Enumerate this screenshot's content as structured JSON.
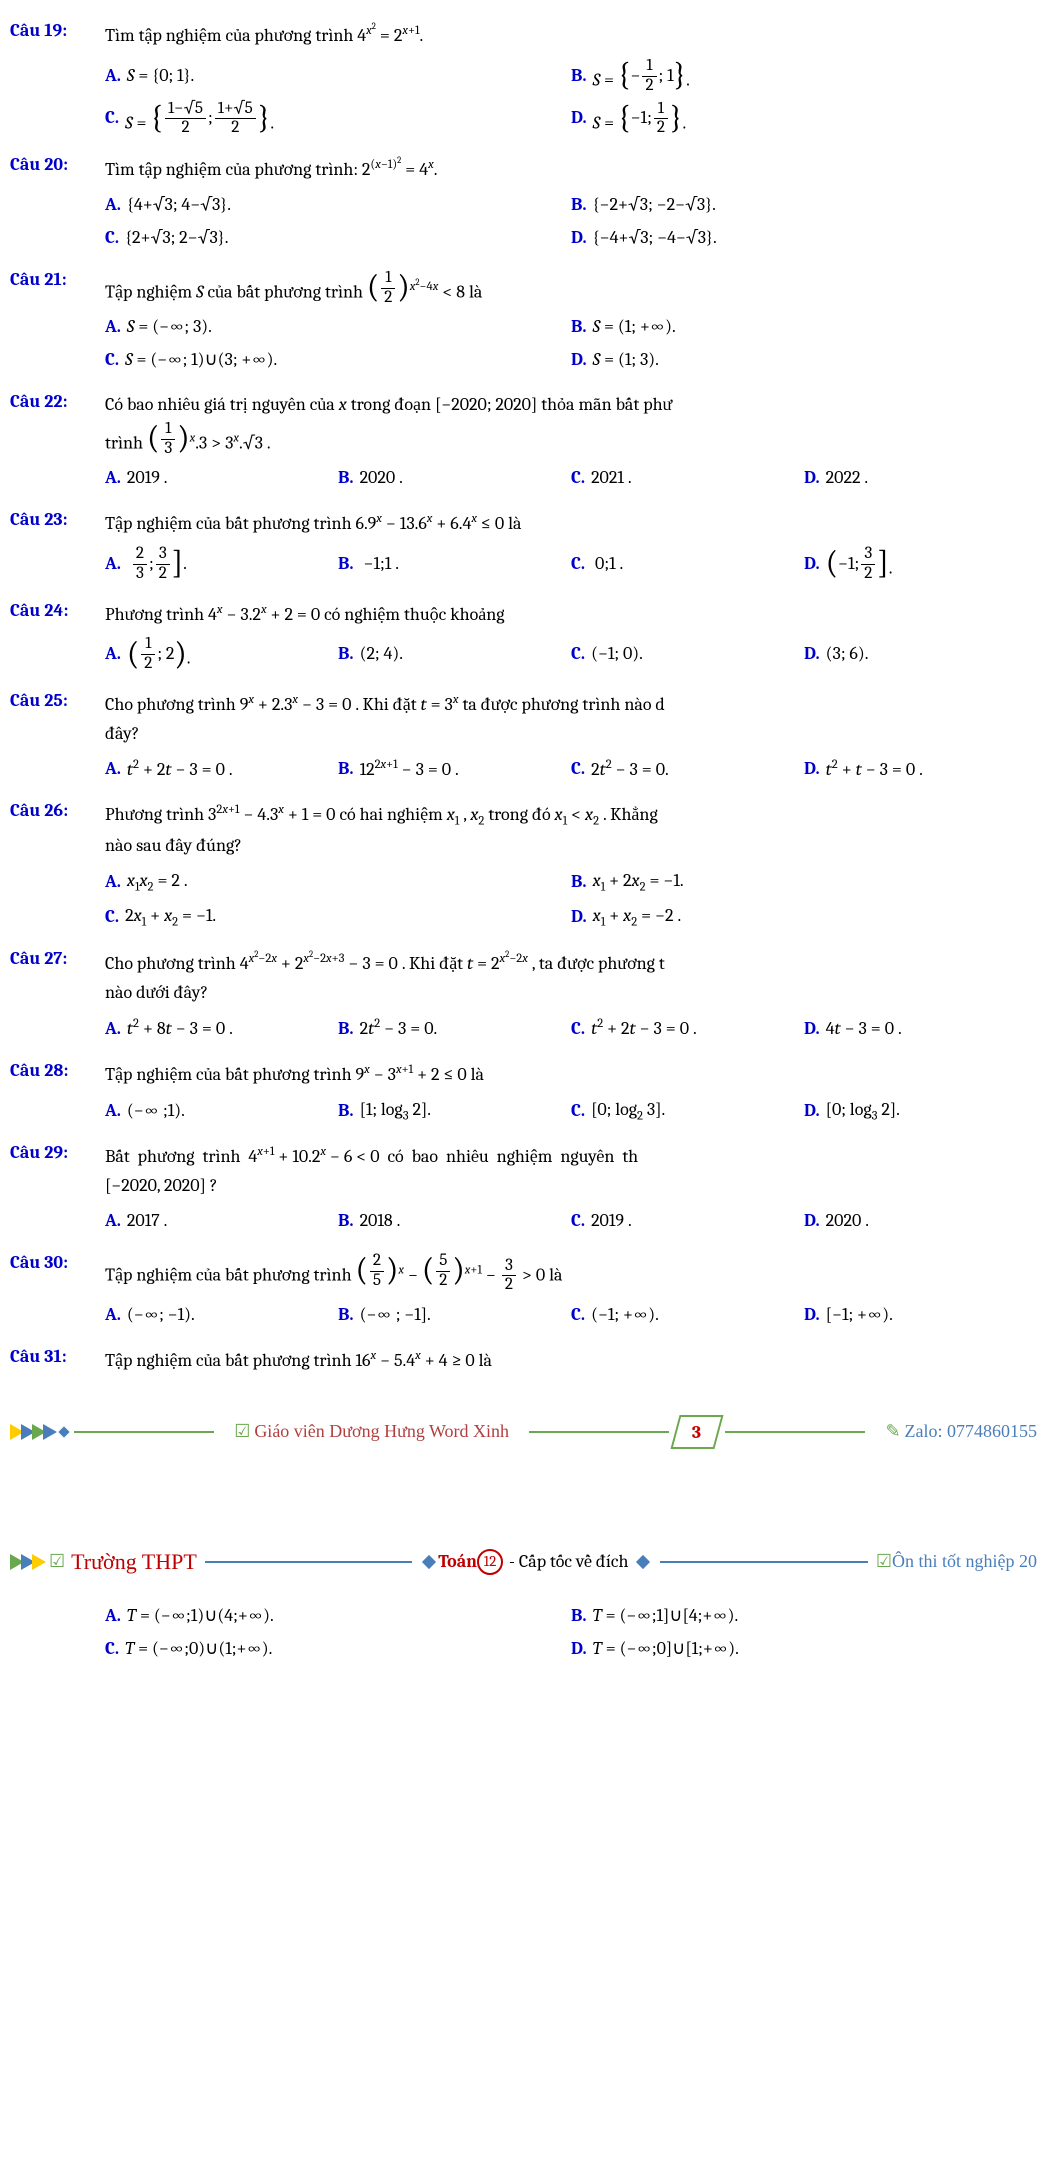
{
  "questions": [
    {
      "num": "Câu 19:",
      "stem_html": "Tìm tập nghiệm của phương trình 4<sup><i>x</i><sup>2</sup></sup> = 2<sup><i>x</i>+1</sup>.",
      "opts": [
        {
          "w": "w50",
          "html": "<i>S</i> = {0; 1}."
        },
        {
          "w": "w50",
          "html": "<i>S</i> = <span class='brace-group'><span class='lbrace'>{</span>−<span class='frac'><span class='num'>1</span><span class='den'>2</span></span>; 1<span class='rbrace'>}</span></span>."
        },
        {
          "w": "w50",
          "html": "<i>S</i> = <span class='brace-group'><span class='lbrace'>{</span><span class='frac'><span class='num'>1−√5</span><span class='den'>2</span></span>; <span class='frac'><span class='num'>1+√5</span><span class='den'>2</span></span><span class='rbrace'>}</span></span>."
        },
        {
          "w": "w50",
          "html": "<i>S</i> = <span class='brace-group'><span class='lbrace'>{</span>−1; <span class='frac'><span class='num'>1</span><span class='den'>2</span></span><span class='rbrace'>}</span></span>."
        }
      ]
    },
    {
      "num": "Câu 20:",
      "stem_html": "Tìm tập nghiệm của phương trình: 2<sup>(<i>x</i>−1)<sup>2</sup></sup> = 4<sup><i>x</i></sup>.",
      "opts": [
        {
          "w": "w50",
          "html": "{4+√3; 4−√3}."
        },
        {
          "w": "w50",
          "html": "{−2+√3; −2−√3}."
        },
        {
          "w": "w50",
          "html": "{2+√3; 2−√3}."
        },
        {
          "w": "w50",
          "html": "{−4+√3; −4−√3}."
        }
      ]
    },
    {
      "num": "Câu 21:",
      "stem_html": "Tập nghiệm <i>S</i> của bất phương trình <span class='brace-group'><span class='lparen'>(</span><span class='frac'><span class='num'>1</span><span class='den'>2</span></span><span class='rparen'>)</span></span><sup><i>x</i><sup>2</sup>−4<i>x</i></sup> &lt; 8 là",
      "opts": [
        {
          "w": "w50",
          "html": "<i>S</i> = (−∞; 3)."
        },
        {
          "w": "w50",
          "html": "<i>S</i> = (1; +∞)."
        },
        {
          "w": "w50",
          "html": "<i>S</i> = (−∞; 1)∪(3; +∞)."
        },
        {
          "w": "w50",
          "html": "<i>S</i> = (1; 3)."
        }
      ]
    },
    {
      "num": "Câu 22:",
      "stem_html": "Có bao nhiêu giá trị nguyên của <i>x</i> trong đoạn [−2020; 2020] thỏa mãn bất phư<br>trình <span class='brace-group'><span class='lparen'>(</span><span class='frac'><span class='num'>1</span><span class='den'>3</span></span><span class='rparen'>)</span></span><sup><i>x</i></sup>.3 &gt; 3<sup><i>x</i></sup>.√3 .",
      "opts": [
        {
          "w": "w25",
          "html": "2019 ."
        },
        {
          "w": "w25",
          "html": "2020 ."
        },
        {
          "w": "w25",
          "html": "2021 ."
        },
        {
          "w": "w25",
          "html": "2022 ."
        }
      ]
    },
    {
      "num": "Câu 23:",
      "stem_html": "Tập nghiệm của bất phương trình 6.9<sup><i>x</i></sup> − 13.6<sup><i>x</i></sup> + 6.4<sup><i>x</i></sup> ≤ 0 là",
      "opts": [
        {
          "w": "w25",
          "html": "<span class='brace-group'>&nbsp;<span class='frac'><span class='num'>2</span><span class='den'>3</span></span>; <span class='frac'><span class='num'>3</span><span class='den'>2</span></span><span class='rbrack'>]</span></span>."
        },
        {
          "w": "w25",
          "html": "&nbsp;−1;1 ."
        },
        {
          "w": "w25",
          "html": "&nbsp;0;1 ."
        },
        {
          "w": "w25",
          "html": "<span class='brace-group'><span class='lparen'>(</span>−1; <span class='frac'><span class='num'>3</span><span class='den'>2</span></span><span class='rbrack'>]</span></span>."
        }
      ]
    },
    {
      "num": "Câu 24:",
      "stem_html": "Phương trình 4<sup><i>x</i></sup> − 3.2<sup><i>x</i></sup> + 2 = 0 có nghiệm thuộc khoảng",
      "opts": [
        {
          "w": "w25",
          "html": "<span class='brace-group'><span class='lparen'>(</span><span class='frac'><span class='num'>1</span><span class='den'>2</span></span>; 2<span class='rparen'>)</span></span>."
        },
        {
          "w": "w25",
          "html": "(2; 4)."
        },
        {
          "w": "w25",
          "html": "(−1; 0)."
        },
        {
          "w": "w25",
          "html": "(3; 6)."
        }
      ]
    },
    {
      "num": "Câu 25:",
      "stem_html": "Cho phương trình 9<sup><i>x</i></sup> + 2.3<sup><i>x</i></sup> − 3 = 0 . Khi đặt <i>t</i> = 3<sup><i>x</i></sup> ta được phương trình nào d<br>đây?",
      "opts": [
        {
          "w": "w25",
          "html": "<i>t</i><sup>2</sup> + 2<i>t</i> − 3 = 0 ."
        },
        {
          "w": "w25",
          "html": "12<sup>2<i>x</i>+1</sup> − 3 = 0 ."
        },
        {
          "w": "w25",
          "html": "2<i>t</i><sup>2</sup> − 3 = 0."
        },
        {
          "w": "w25",
          "html": "<i>t</i><sup>2</sup> + <i>t</i> − 3 = 0 ."
        }
      ]
    },
    {
      "num": "Câu 26:",
      "stem_html": "Phương trình 3<sup>2<i>x</i>+1</sup> − 4.3<sup><i>x</i></sup> + 1 = 0 có hai nghiệm <i>x</i><sub>1</sub> , <i>x</i><sub>2</sub> trong đó <i>x</i><sub>1</sub> &lt; <i>x</i><sub>2</sub> . Khẳng <br>nào sau đây đúng?",
      "opts": [
        {
          "w": "w50",
          "html": "<i>x</i><sub>1</sub><i>x</i><sub>2</sub> = 2 ."
        },
        {
          "w": "w50",
          "html": "<i>x</i><sub>1</sub> + 2<i>x</i><sub>2</sub> = −1."
        },
        {
          "w": "w50",
          "html": "2<i>x</i><sub>1</sub> + <i>x</i><sub>2</sub> = −1."
        },
        {
          "w": "w50",
          "html": "<i>x</i><sub>1</sub> + <i>x</i><sub>2</sub> = −2 ."
        }
      ]
    },
    {
      "num": "Câu 27:",
      "stem_html": "Cho phương trình 4<sup><i>x</i><sup>2</sup>−2<i>x</i></sup> + 2<sup><i>x</i><sup>2</sup>−2<i>x</i>+3</sup> − 3 = 0 . Khi đặt <i>t</i> = 2<sup><i>x</i><sup>2</sup>−2<i>x</i></sup> , ta được phương t<br>nào dưới đây?",
      "opts": [
        {
          "w": "w25",
          "html": "<i>t</i><sup>2</sup> + 8<i>t</i> − 3 = 0 ."
        },
        {
          "w": "w25",
          "html": "2<i>t</i><sup>2</sup> − 3 = 0."
        },
        {
          "w": "w25",
          "html": "<i>t</i><sup>2</sup> + 2<i>t</i> − 3 = 0 ."
        },
        {
          "w": "w25",
          "html": "4<i>t</i> − 3 = 0 ."
        }
      ]
    },
    {
      "num": "Câu 28:",
      "stem_html": "Tập nghiệm của bất phương trình 9<sup><i>x</i></sup> − 3<sup><i>x</i>+1</sup> + 2 ≤ 0 là",
      "opts": [
        {
          "w": "w25",
          "html": "(−∞ ;1)."
        },
        {
          "w": "w25",
          "html": "[1; log<sub>3</sub> 2]."
        },
        {
          "w": "w25",
          "html": "[0; log<sub>2</sub> 3]."
        },
        {
          "w": "w25",
          "html": "[0; log<sub>3</sub> 2]."
        }
      ]
    },
    {
      "num": "Câu 29:",
      "stem_html": "Bất&nbsp; phương&nbsp; trình&nbsp; 4<sup><i>x</i>+1</sup> + 10.2<sup><i>x</i></sup> − 6 &lt; 0&nbsp; có&nbsp; bao&nbsp; nhiêu&nbsp; nghiệm&nbsp; nguyên&nbsp; th<br>[−2020, 2020] ?",
      "opts": [
        {
          "w": "w25",
          "html": "2017 ."
        },
        {
          "w": "w25",
          "html": "2018 ."
        },
        {
          "w": "w25",
          "html": "2019 ."
        },
        {
          "w": "w25",
          "html": "2020 ."
        }
      ]
    },
    {
      "num": "Câu 30:",
      "stem_html": "Tập nghiệm của bất phương trình <span class='brace-group'><span class='lparen'>(</span><span class='frac'><span class='num'>2</span><span class='den'>5</span></span><span class='rparen'>)</span></span><sup><i>x</i></sup> − <span class='brace-group'><span class='lparen'>(</span><span class='frac'><span class='num'>5</span><span class='den'>2</span></span><span class='rparen'>)</span></span><sup><i>x</i>+1</sup> − <span class='frac'><span class='num'>3</span><span class='den'>2</span></span> &gt; 0 là",
      "opts": [
        {
          "w": "w25",
          "html": "(−∞; −1)."
        },
        {
          "w": "w25",
          "html": "(−∞ ; −1]."
        },
        {
          "w": "w25",
          "html": "(−1; +∞)."
        },
        {
          "w": "w25",
          "html": "[−1; +∞)."
        }
      ]
    },
    {
      "num": "Câu 31:",
      "stem_html": "Tập nghiệm của bất phương trình 16<sup><i>x</i></sup> − 5.4<sup><i>x</i></sup> + 4 ≥ 0 là",
      "opts": []
    }
  ],
  "q31_opts": [
    {
      "w": "w50",
      "html": "<i>T</i> = (−∞;1)∪(4;+∞)."
    },
    {
      "w": "w50",
      "html": "<i>T</i> = (−∞;1]∪[4;+∞)."
    },
    {
      "w": "w50",
      "html": "<i>T</i> = (−∞;0)∪(1;+∞)."
    },
    {
      "w": "w50",
      "html": "<i>T</i> = (−∞;0]∪[1;+∞)."
    }
  ],
  "letters": [
    "A.",
    "B.",
    "C.",
    "D."
  ],
  "footer1": {
    "teacher": "Giáo viên Dương Hưng Word Xinh",
    "page": "3",
    "zalo": "Zalo: 0774860155"
  },
  "footer2": {
    "truong": "Trường THPT",
    "toan": "Toán",
    "num": "12",
    "subtitle": "- Cấp tốc về đích",
    "right": "Ôn thi tốt nghiệp 20"
  },
  "colors": {
    "label": "#0000cc",
    "green": "#6aa84f",
    "red": "#c00000",
    "blue": "#4a7ebb"
  }
}
